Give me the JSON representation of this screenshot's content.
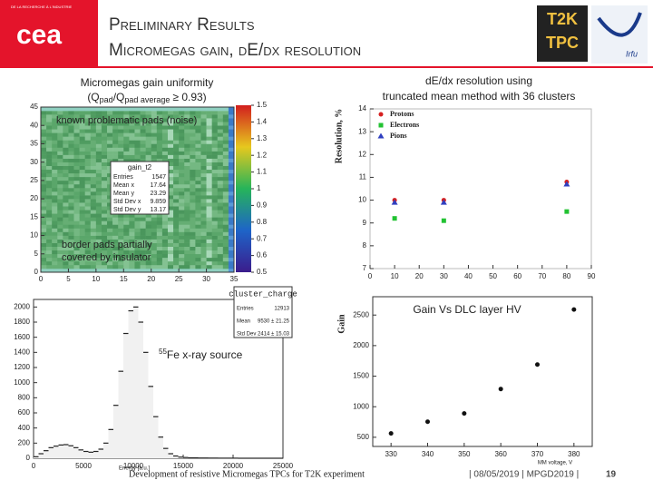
{
  "header": {
    "tagline": "DE LA RECHERCHE À L'INDUSTRIE",
    "logo": "cea",
    "title_line1": "Preliminary Results",
    "title_line2": "Micromegas gain, dE/dx resolution",
    "logo_t2k": "T2K",
    "logo_tpc": "TPC",
    "logo_irfu": "Irfu"
  },
  "gain_map": {
    "caption": [
      "Micromegas gain uniformity"
    ],
    "caption_formula": [
      "(Q",
      "pad",
      "/Q",
      "pad average",
      "≥ 0.93)"
    ],
    "annotation_noise": "known problematic pads (noise)",
    "annotation_border": [
      "border pads partially",
      "covered by insulator"
    ],
    "stats_title": "gain_t2",
    "stats": [
      [
        "Entries",
        1547
      ],
      [
        "Mean x",
        17.64
      ],
      [
        "Mean y",
        23.29
      ],
      [
        "Std Dev x",
        9.859
      ],
      [
        "Std Dev y",
        13.17
      ]
    ],
    "xticks": [
      0,
      5,
      10,
      15,
      20,
      25,
      30,
      35
    ],
    "yticks": [
      0,
      5,
      10,
      15,
      20,
      25,
      30,
      35,
      40,
      45
    ],
    "colorbar_ticks": [
      0.5,
      0.6,
      0.7,
      0.8,
      0.9,
      1,
      1.1,
      1.2,
      1.3,
      1.4,
      1.5
    ]
  },
  "chart_data": [
    {
      "type": "scatter",
      "title": [
        "dE/dx resolution using",
        "truncated mean method with 36 clusters"
      ],
      "y_label": "Resolution, %",
      "xlim": [
        0,
        90
      ],
      "xticks": [
        0,
        10,
        20,
        30,
        40,
        50,
        60,
        70,
        80,
        90
      ],
      "ylim": [
        7,
        14
      ],
      "yticks": [
        7,
        8,
        9,
        10,
        11,
        12,
        13,
        14
      ],
      "legend": "top-left",
      "series": [
        {
          "name": "Protons",
          "color": "#d62020",
          "marker": "circle",
          "x": [
            10,
            30,
            80
          ],
          "values": [
            10,
            10,
            10.8
          ]
        },
        {
          "name": "Electrons",
          "color": "#22c232",
          "marker": "square",
          "x": [
            10,
            30,
            80
          ],
          "values": [
            9.2,
            9.1,
            9.5
          ]
        },
        {
          "name": "Pions",
          "color": "#3040c0",
          "marker": "triangle",
          "x": [
            10,
            30,
            80
          ],
          "values": [
            9.9,
            9.9,
            10.7
          ]
        }
      ]
    },
    {
      "type": "scatter",
      "annotation": "Gain Vs DLC layer HV",
      "y_label": "Gain",
      "x_label": "MM voltage, V",
      "xlim": [
        325,
        385
      ],
      "xticks": [
        330,
        340,
        350,
        360,
        370,
        380
      ],
      "ylim": [
        350,
        2800
      ],
      "yticks": [
        500,
        1000,
        1500,
        2000,
        2500
      ],
      "series": [
        {
          "color": "#111111",
          "marker": "circle",
          "x": [
            330,
            340,
            350,
            360,
            370,
            380
          ],
          "values": [
            563,
            755,
            890,
            1290,
            1690,
            2590
          ]
        }
      ]
    },
    {
      "type": "histogram",
      "title": "cluster_charge",
      "x_label": "Energy [a.u.]",
      "annotation_sup": "55",
      "annotation": "Fe x-ray source",
      "stats": [
        [
          "Entries",
          "12913"
        ],
        [
          "Mean",
          "9530 ± 21.25"
        ],
        [
          "Std Dev",
          "2414 ± 15.03"
        ]
      ],
      "xlim": [
        0,
        25000
      ],
      "xticks": [
        0,
        5000,
        10000,
        15000,
        20000,
        25000
      ],
      "ylim": [
        0,
        2100
      ],
      "yticks": [
        0,
        200,
        400,
        600,
        800,
        1000,
        1200,
        1400,
        1600,
        1800,
        2000
      ],
      "color": "#222222",
      "bins": [
        0,
        500,
        1000,
        1500,
        2000,
        2500,
        3000,
        3500,
        4000,
        4500,
        5000,
        5500,
        6000,
        6500,
        7000,
        7500,
        8000,
        8500,
        9000,
        9500,
        10000,
        10500,
        11000,
        11500,
        12000,
        12500,
        13000,
        13500,
        14000,
        14500,
        15000,
        15500,
        16000,
        16500,
        17000,
        17500,
        18000,
        18500,
        19000,
        19500,
        20000,
        20500,
        21000,
        21500,
        22000,
        22500,
        23000,
        23500,
        24000,
        24500,
        25000
      ],
      "values": [
        20,
        60,
        100,
        140,
        160,
        175,
        180,
        165,
        140,
        110,
        90,
        80,
        90,
        120,
        200,
        380,
        700,
        1150,
        1650,
        1950,
        2000,
        1800,
        1400,
        950,
        550,
        280,
        130,
        60,
        30,
        15,
        10,
        5,
        5,
        3,
        3,
        2,
        2,
        1,
        1,
        1,
        1,
        0,
        0,
        0,
        0,
        0,
        0,
        0,
        0,
        0
      ]
    }
  ],
  "footer": {
    "text": "Development of resistive Micromegas TPCs for T2K experiment",
    "meta": "| 08/05/2019 | MPGD2019 |",
    "page": "19"
  }
}
